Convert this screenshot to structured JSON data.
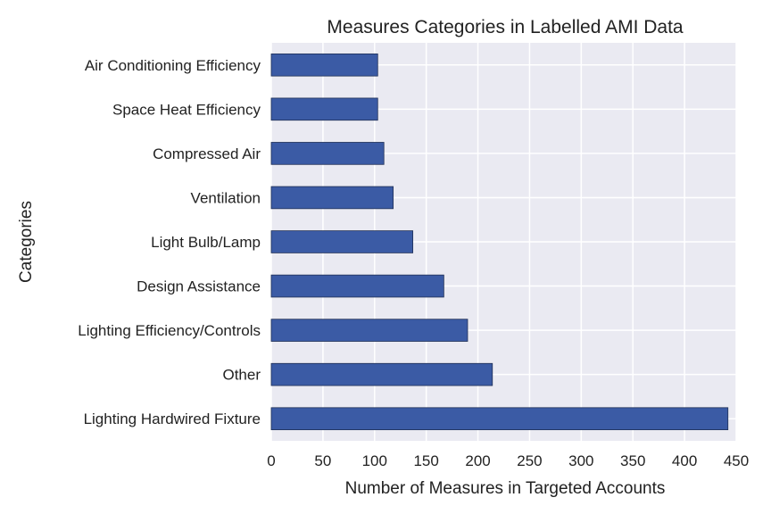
{
  "chart_data": {
    "type": "bar",
    "orientation": "horizontal",
    "title": "Measures Categories in Labelled AMI Data",
    "xlabel": "Number of Measures in Targeted Accounts",
    "ylabel": "Categories",
    "categories": [
      "Air Conditioning Efficiency",
      "Space Heat Efficiency",
      "Compressed Air",
      "Ventilation",
      "Light Bulb/Lamp",
      "Design Assistance",
      "Lighting Efficiency/Controls",
      "Other",
      "Lighting Hardwired Fixture"
    ],
    "values": [
      103,
      103,
      109,
      118,
      137,
      167,
      190,
      214,
      442
    ],
    "xlim": [
      0,
      450
    ],
    "xticks": [
      "0",
      "50",
      "100",
      "150",
      "200",
      "250",
      "300",
      "350",
      "400",
      "450"
    ],
    "grid": true,
    "legend": "none",
    "colors": {
      "bar": "#3b5ba5",
      "bar_edge": "#1f2f55",
      "plot_bg": "#eaeaf2",
      "grid": "#ffffff",
      "text": "#222222"
    }
  }
}
